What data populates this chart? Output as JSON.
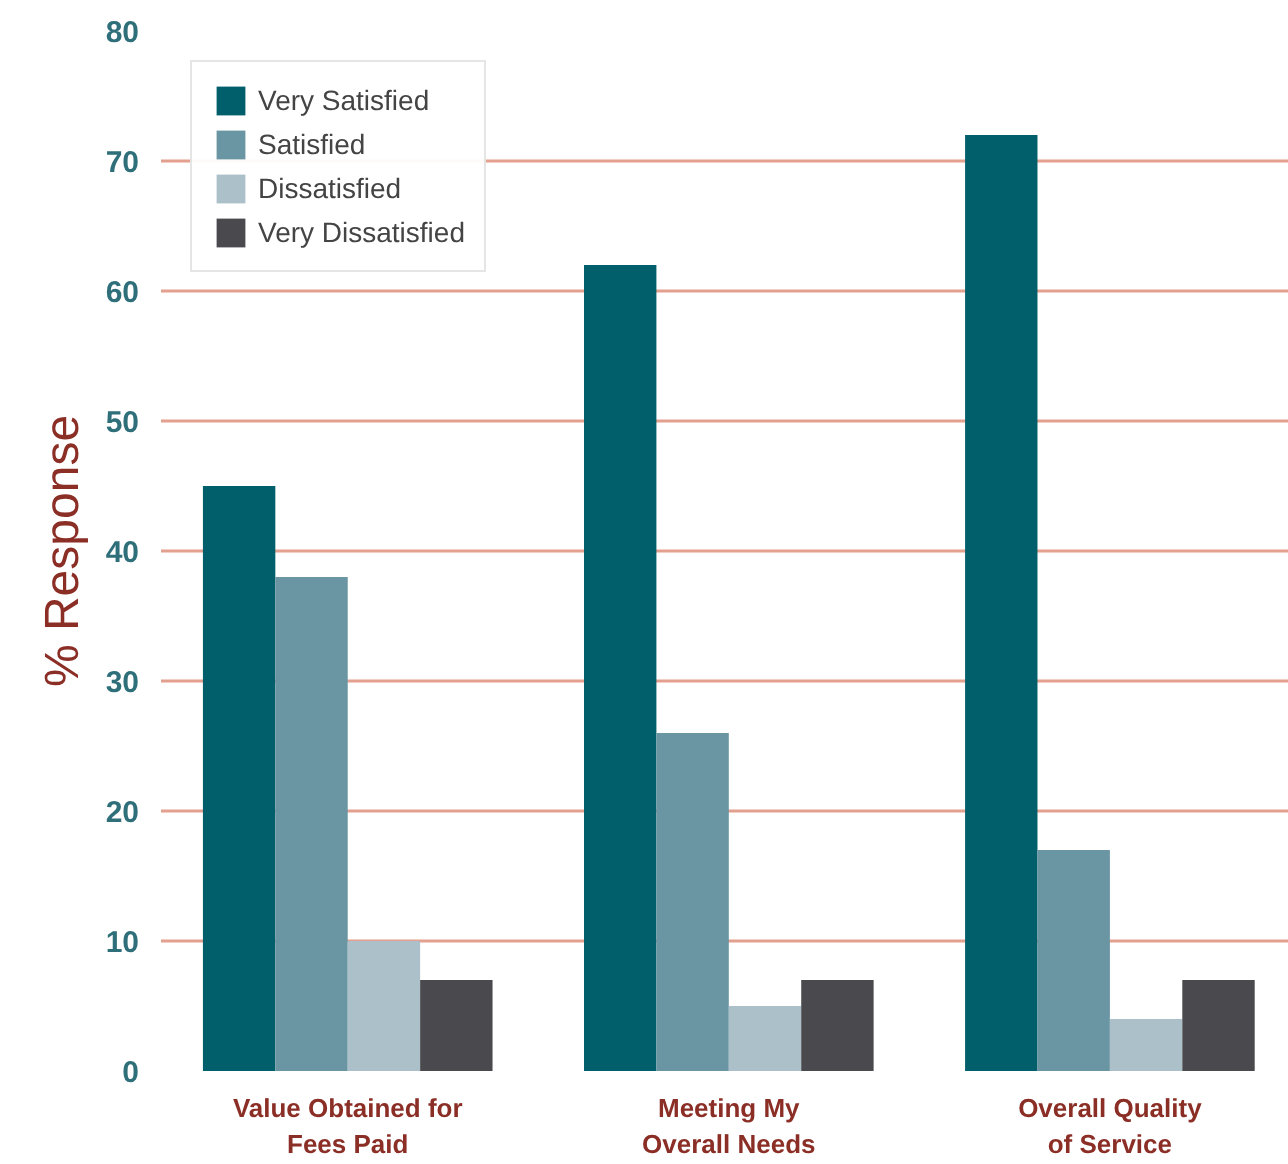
{
  "chart_data": {
    "type": "bar",
    "ylabel": "% Response",
    "categories": [
      "Value Obtained for\nFees Paid",
      "Meeting My\nOverall Needs",
      "Overall Quality\nof Service"
    ],
    "series": [
      {
        "name": "Very Satisfied",
        "color": "#005f6b",
        "values": [
          45,
          62,
          72
        ]
      },
      {
        "name": "Satisfied",
        "color": "#6a95a3",
        "values": [
          38,
          26,
          17
        ]
      },
      {
        "name": "Dissatisfied",
        "color": "#abc0c8",
        "values": [
          10,
          5,
          4
        ]
      },
      {
        "name": "Very Dissatisfied",
        "color": "#4a4a4e",
        "values": [
          7,
          7,
          7
        ]
      }
    ],
    "ylim": [
      0,
      80
    ],
    "yticks": [
      0,
      10,
      20,
      30,
      40,
      50,
      60,
      70,
      80
    ],
    "grid": "y",
    "legend": "top left"
  }
}
